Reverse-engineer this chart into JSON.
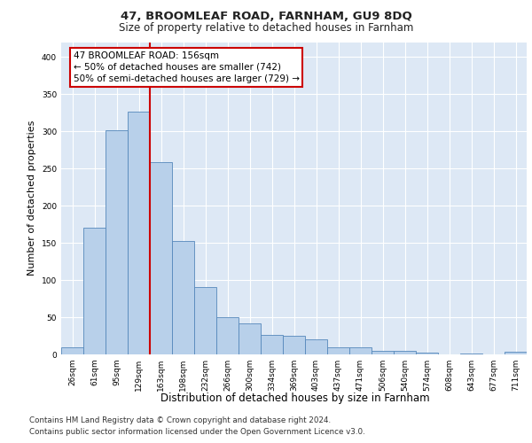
{
  "title1": "47, BROOMLEAF ROAD, FARNHAM, GU9 8DQ",
  "title2": "Size of property relative to detached houses in Farnham",
  "xlabel": "Distribution of detached houses by size in Farnham",
  "ylabel": "Number of detached properties",
  "bin_labels": [
    "26sqm",
    "61sqm",
    "95sqm",
    "129sqm",
    "163sqm",
    "198sqm",
    "232sqm",
    "266sqm",
    "300sqm",
    "334sqm",
    "369sqm",
    "403sqm",
    "437sqm",
    "471sqm",
    "506sqm",
    "540sqm",
    "574sqm",
    "608sqm",
    "643sqm",
    "677sqm",
    "711sqm"
  ],
  "bar_values": [
    10,
    170,
    301,
    327,
    259,
    153,
    91,
    50,
    42,
    26,
    25,
    20,
    10,
    9,
    5,
    5,
    2,
    0,
    1,
    0,
    3
  ],
  "bar_color": "#b8d0ea",
  "bar_edge_color": "#5588bb",
  "vline_color": "#cc0000",
  "vline_pos": 3.5,
  "annotation_text": "47 BROOMLEAF ROAD: 156sqm\n← 50% of detached houses are smaller (742)\n50% of semi-detached houses are larger (729) →",
  "annotation_box_color": "#ffffff",
  "annotation_box_edge": "#cc0000",
  "ylim": [
    0,
    420
  ],
  "yticks": [
    0,
    50,
    100,
    150,
    200,
    250,
    300,
    350,
    400
  ],
  "footer1": "Contains HM Land Registry data © Crown copyright and database right 2024.",
  "footer2": "Contains public sector information licensed under the Open Government Licence v3.0.",
  "bg_color": "#dde8f5",
  "fig_bg": "#ffffff",
  "grid_color": "#ffffff",
  "title1_fontsize": 9.5,
  "title2_fontsize": 8.5,
  "ylabel_fontsize": 8,
  "xlabel_fontsize": 8.5,
  "tick_fontsize": 6.5,
  "ann_fontsize": 7.5,
  "footer_fontsize": 6.3
}
